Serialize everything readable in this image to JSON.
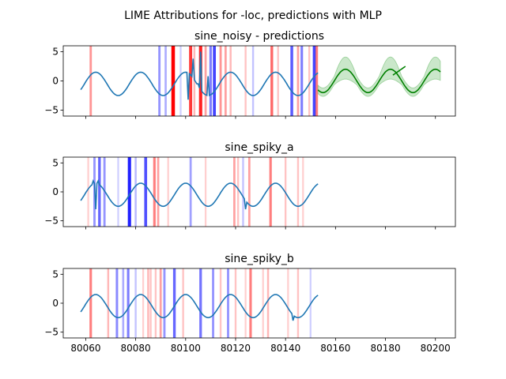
{
  "figure_title": "LIME Attributions for -loc, predictions with MLP",
  "colors": {
    "series": "#1f77b4",
    "prediction": "#008000",
    "prediction_band": "#2ca02c",
    "positive": "#ff0000",
    "negative": "#0000ff"
  },
  "chart_data": [
    {
      "type": "line",
      "title": "sine_noisy - predictions",
      "xlim": [
        80051,
        80208
      ],
      "ylim": [
        -6,
        6
      ],
      "yticks": [
        -5,
        0,
        5
      ],
      "xticks": [
        80060,
        80080,
        80100,
        80120,
        80140,
        80160,
        80180,
        80200
      ],
      "show_xtick_labels": false,
      "series": [
        {
          "x_start": 80058,
          "x_end": 80153,
          "amplitude": 2,
          "period": 18,
          "phase_x0": 80059.5,
          "offset": -0.5,
          "spikes": [
            {
              "x": 80101,
              "y": -3.2
            },
            {
              "x": 80103,
              "y": 3.8
            },
            {
              "x": 80105,
              "y": -0.5
            },
            {
              "x": 80106,
              "y": 5.0
            },
            {
              "x": 80109,
              "y": 0.8
            }
          ]
        }
      ],
      "prediction": {
        "x_start": 80153,
        "x_end": 80202,
        "amplitude": 2,
        "period": 18,
        "phase_x0": 80159.5,
        "offset": 0,
        "band_halfwidth": 0.8,
        "band_spread": 1.3
      },
      "prediction_extra": [
        {
          "x": 80183,
          "y": 1.0
        },
        {
          "x": 80188,
          "y": 2.5
        }
      ],
      "attributions": [
        {
          "x": 80062,
          "w": 0.35
        },
        {
          "x": 80089.5,
          "w": -0.35
        },
        {
          "x": 80092,
          "w": -0.25
        },
        {
          "x": 80095,
          "w": 1.0
        },
        {
          "x": 80098,
          "w": -0.1
        },
        {
          "x": 80102,
          "w": 0.75
        },
        {
          "x": 80103.5,
          "w": 0.2
        },
        {
          "x": 80106,
          "w": 0.85
        },
        {
          "x": 80108,
          "w": 0.3
        },
        {
          "x": 80110,
          "w": -0.45
        },
        {
          "x": 80111.5,
          "w": -0.7
        },
        {
          "x": 80114,
          "w": 0.35
        },
        {
          "x": 80116,
          "w": 0.3
        },
        {
          "x": 80118,
          "w": 0.2
        },
        {
          "x": 80124,
          "w": 0.15
        },
        {
          "x": 80127,
          "w": -0.15
        },
        {
          "x": 80134.5,
          "w": 0.55
        },
        {
          "x": 80137,
          "w": 0.15
        },
        {
          "x": 80142.5,
          "w": -0.6
        },
        {
          "x": 80145,
          "w": 0.3
        },
        {
          "x": 80146.5,
          "w": -0.45
        },
        {
          "x": 80149.5,
          "w": 0.15
        },
        {
          "x": 80151.5,
          "w": -0.7
        },
        {
          "x": 80152.5,
          "w": 0.45
        }
      ]
    },
    {
      "type": "line",
      "title": "sine_spiky_a",
      "xlim": [
        80051,
        80208
      ],
      "ylim": [
        -6,
        6
      ],
      "yticks": [
        -5,
        0,
        5
      ],
      "xticks": [
        80060,
        80080,
        80100,
        80120,
        80140,
        80160,
        80180,
        80200
      ],
      "show_xtick_labels": false,
      "series": [
        {
          "x_start": 80058,
          "x_end": 80153,
          "amplitude": 2,
          "period": 18,
          "phase_x0": 80059.5,
          "offset": -0.5,
          "spikes": [
            {
              "x": 80063,
              "y": 1.9
            },
            {
              "x": 80064,
              "y": -3.0
            },
            {
              "x": 80065,
              "y": 1.9
            },
            {
              "x": 80124,
              "y": -3.0
            }
          ]
        }
      ],
      "attributions": [
        {
          "x": 80061,
          "w": 0.1
        },
        {
          "x": 80063.5,
          "w": -0.35
        },
        {
          "x": 80065.5,
          "w": -0.55
        },
        {
          "x": 80067.5,
          "w": -0.35
        },
        {
          "x": 80073,
          "w": -0.1
        },
        {
          "x": 80077.5,
          "w": -0.85
        },
        {
          "x": 80080,
          "w": -0.2
        },
        {
          "x": 80084,
          "w": -0.65
        },
        {
          "x": 80087.5,
          "w": 0.45
        },
        {
          "x": 80089,
          "w": 0.3
        },
        {
          "x": 80093,
          "w": 0.1
        },
        {
          "x": 80102,
          "w": -0.3
        },
        {
          "x": 80108,
          "w": 0.1
        },
        {
          "x": 80119.5,
          "w": 0.3
        },
        {
          "x": 80121,
          "w": 0.15
        },
        {
          "x": 80123,
          "w": -0.15
        },
        {
          "x": 80125.5,
          "w": 0.3
        },
        {
          "x": 80134,
          "w": 0.45
        },
        {
          "x": 80140,
          "w": 0.15
        },
        {
          "x": 80145,
          "w": 0.15
        },
        {
          "x": 80147,
          "w": 0.1
        }
      ]
    },
    {
      "type": "line",
      "title": "sine_spiky_b",
      "xlim": [
        80051,
        80208
      ],
      "ylim": [
        -6,
        6
      ],
      "yticks": [
        -5,
        0,
        5
      ],
      "xticks": [
        80060,
        80080,
        80100,
        80120,
        80140,
        80160,
        80180,
        80200
      ],
      "show_xtick_labels": true,
      "series": [
        {
          "x_start": 80058,
          "x_end": 80153,
          "amplitude": 2,
          "period": 18,
          "phase_x0": 80059.5,
          "offset": -0.5,
          "spikes": [
            {
              "x": 80143,
              "y": -3.0
            }
          ]
        }
      ],
      "attributions": [
        {
          "x": 80062,
          "w": 0.45
        },
        {
          "x": 80069,
          "w": 0.2
        },
        {
          "x": 80072.5,
          "w": -0.4
        },
        {
          "x": 80075,
          "w": -0.25
        },
        {
          "x": 80077,
          "w": -0.45
        },
        {
          "x": 80080,
          "w": -0.15
        },
        {
          "x": 80083,
          "w": 0.1
        },
        {
          "x": 80085,
          "w": 0.2
        },
        {
          "x": 80086,
          "w": 0.15
        },
        {
          "x": 80088,
          "w": 0.15
        },
        {
          "x": 80090,
          "w": 0.3
        },
        {
          "x": 80091.5,
          "w": -0.35
        },
        {
          "x": 80095.5,
          "w": -0.55
        },
        {
          "x": 80099,
          "w": 0.15
        },
        {
          "x": 80106,
          "w": -0.5
        },
        {
          "x": 80111,
          "w": -0.35
        },
        {
          "x": 80114,
          "w": 0.15
        },
        {
          "x": 80117,
          "w": -0.35
        },
        {
          "x": 80120,
          "w": 0.15
        },
        {
          "x": 80124,
          "w": 0.1
        },
        {
          "x": 80126,
          "w": 0.45
        },
        {
          "x": 80131,
          "w": 0.1
        },
        {
          "x": 80133,
          "w": 0.2
        },
        {
          "x": 80141,
          "w": 0.1
        },
        {
          "x": 80145,
          "w": 0.15
        },
        {
          "x": 80150,
          "w": -0.1
        }
      ]
    }
  ]
}
